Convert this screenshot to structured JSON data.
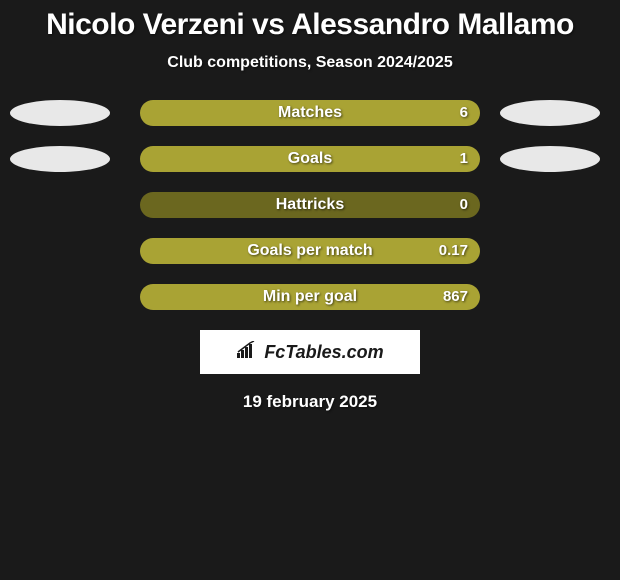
{
  "title": "Nicolo Verzeni vs Alessandro Mallamo",
  "subtitle": "Club competitions, Season 2024/2025",
  "date": "19 february 2025",
  "logo_text": "FcTables.com",
  "background_color": "#1a1a1a",
  "colors": {
    "bar_fill": "#a9a334",
    "bar_bg_dark": "#6b671f",
    "bar_bg_light": "#b8b34a",
    "ellipse_light": "#e8e8e8",
    "white": "#ffffff"
  },
  "stats": [
    {
      "label": "Matches",
      "value": "6",
      "fill_pct": 100,
      "bg_color": "#a9a334",
      "show_left_ellipse": true,
      "show_right_ellipse": true
    },
    {
      "label": "Goals",
      "value": "1",
      "fill_pct": 100,
      "bg_color": "#a9a334",
      "show_left_ellipse": true,
      "show_right_ellipse": true
    },
    {
      "label": "Hattricks",
      "value": "0",
      "fill_pct": 0,
      "bg_color": "#6b671f",
      "show_left_ellipse": false,
      "show_right_ellipse": false
    },
    {
      "label": "Goals per match",
      "value": "0.17",
      "fill_pct": 100,
      "bg_color": "#a9a334",
      "show_left_ellipse": false,
      "show_right_ellipse": false
    },
    {
      "label": "Min per goal",
      "value": "867",
      "fill_pct": 100,
      "bg_color": "#a9a334",
      "show_left_ellipse": false,
      "show_right_ellipse": false
    }
  ]
}
